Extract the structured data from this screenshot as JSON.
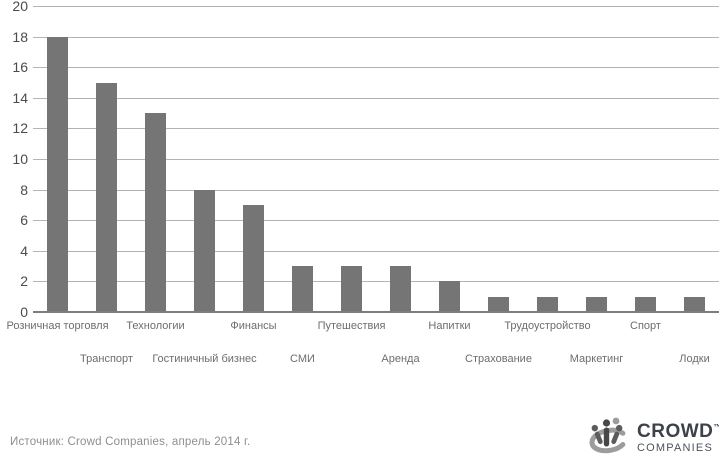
{
  "chart_data": {
    "type": "bar",
    "categories": [
      "Розничная торговля",
      "Транспорт",
      "Технологии",
      "Гостиничный бизнес",
      "Финансы",
      "СМИ",
      "Путешествия",
      "Аренда",
      "Напитки",
      "Страхование",
      "Трудоустройство",
      "Маркетинг",
      "Спорт",
      "Лодки"
    ],
    "values": [
      18,
      15,
      13,
      8,
      7,
      3,
      3,
      3,
      2,
      1,
      1,
      1,
      1,
      1
    ],
    "title": "",
    "xlabel": "",
    "ylabel": "",
    "ylim": [
      0,
      20
    ],
    "ytick_step": 2,
    "grid": true,
    "legend": false,
    "bar_color": "#757575",
    "gridline_color": "#b3b3b3",
    "axis_line_color": "#7d7d7d",
    "x_labels_layout": "alternating-two-rows"
  },
  "footer": {
    "source_text": "Источник: Crowd Companies, апрель 2014 г.",
    "logo": {
      "name": "CROWD",
      "trademark": "™",
      "subname": "COMPANIES",
      "icon": "crowd-people-circle-icon"
    }
  },
  "colors": {
    "background": "#ffffff",
    "bar": "#757575",
    "gridline": "#b3b3b3",
    "zero_axis": "#7d7d7d",
    "y_tick_text": "#4c4c4c",
    "x_tick_text": "#6d6d6d",
    "source_text": "#8e8e8e",
    "logo_text": "#3d424a"
  }
}
